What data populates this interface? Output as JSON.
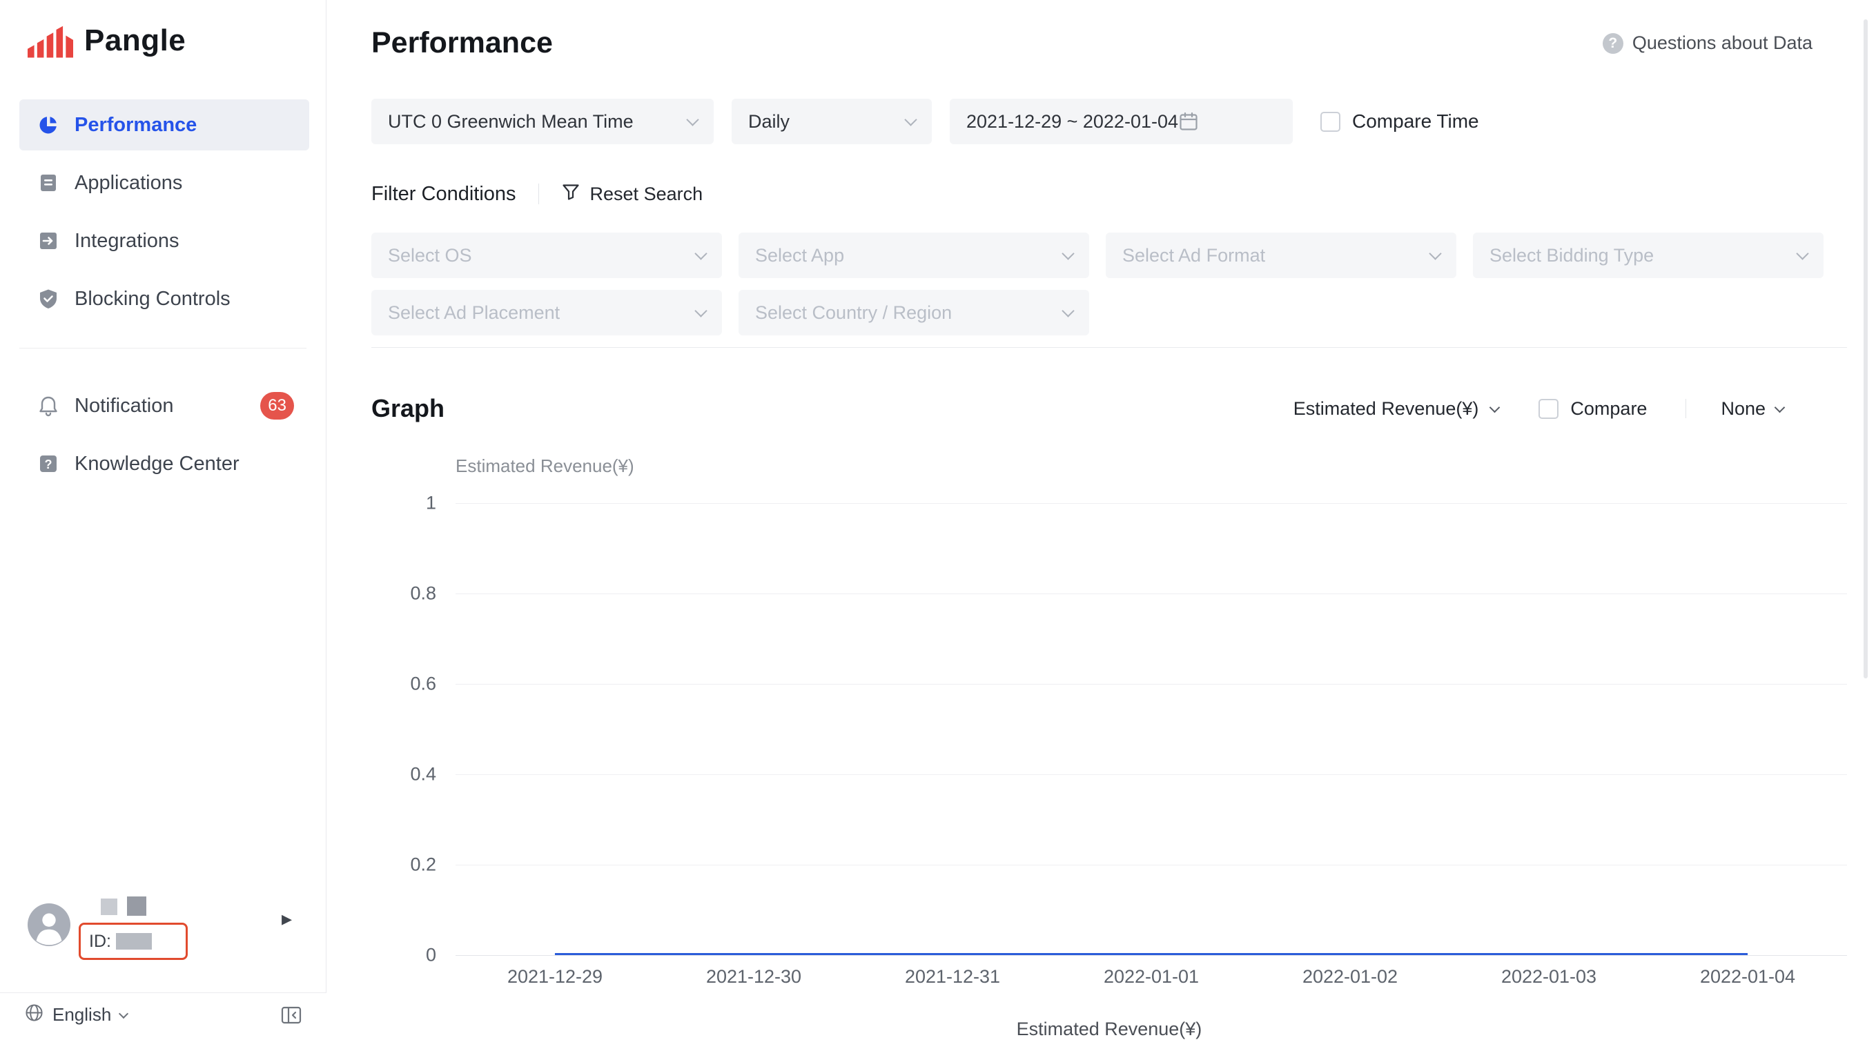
{
  "brand": {
    "name": "Pangle"
  },
  "sidebar": {
    "items": [
      {
        "label": "Performance"
      },
      {
        "label": "Applications"
      },
      {
        "label": "Integrations"
      },
      {
        "label": "Blocking Controls"
      },
      {
        "label": "Notification",
        "badge": "63"
      },
      {
        "label": "Knowledge Center"
      }
    ],
    "user": {
      "id_label": "ID:"
    },
    "language": {
      "label": "English"
    }
  },
  "header": {
    "title": "Performance",
    "help": "Questions about Data"
  },
  "filters": {
    "timezone": {
      "value": "UTC 0 Greenwich Mean Time"
    },
    "granularity": {
      "value": "Daily"
    },
    "date_range": {
      "value": "2021-12-29 ~ 2022-01-04"
    },
    "compare_time": {
      "label": "Compare Time"
    },
    "conditions_label": "Filter Conditions",
    "reset_label": "Reset Search",
    "selects": [
      {
        "placeholder": "Select OS"
      },
      {
        "placeholder": "Select App"
      },
      {
        "placeholder": "Select Ad Format"
      },
      {
        "placeholder": "Select Bidding Type"
      },
      {
        "placeholder": "Select Ad Placement"
      },
      {
        "placeholder": "Select Country / Region"
      }
    ]
  },
  "graph": {
    "title": "Graph",
    "metric_selector": "Estimated Revenue(¥)",
    "compare_label": "Compare",
    "dimension_selector": "None"
  },
  "chart_data": {
    "type": "line",
    "title": "Estimated Revenue(¥)",
    "ylabel": "Estimated Revenue(¥)",
    "x": [
      "2021-12-29",
      "2021-12-30",
      "2021-12-31",
      "2022-01-01",
      "2022-01-02",
      "2022-01-03",
      "2022-01-04"
    ],
    "series": [
      {
        "name": "Estimated Revenue(¥)",
        "values": [
          0,
          0,
          0,
          0,
          0,
          0,
          0
        ],
        "color": "#2b5cd9"
      }
    ],
    "ylim": [
      0,
      1
    ],
    "yticks": [
      0,
      0.2,
      0.4,
      0.6,
      0.8,
      1
    ],
    "grid": true,
    "legend_position": "bottom"
  },
  "colors": {
    "accent_blue": "#2553e9",
    "brand_red": "#e8443f",
    "badge_red": "#e5544b",
    "line_blue": "#2b5cd9"
  }
}
